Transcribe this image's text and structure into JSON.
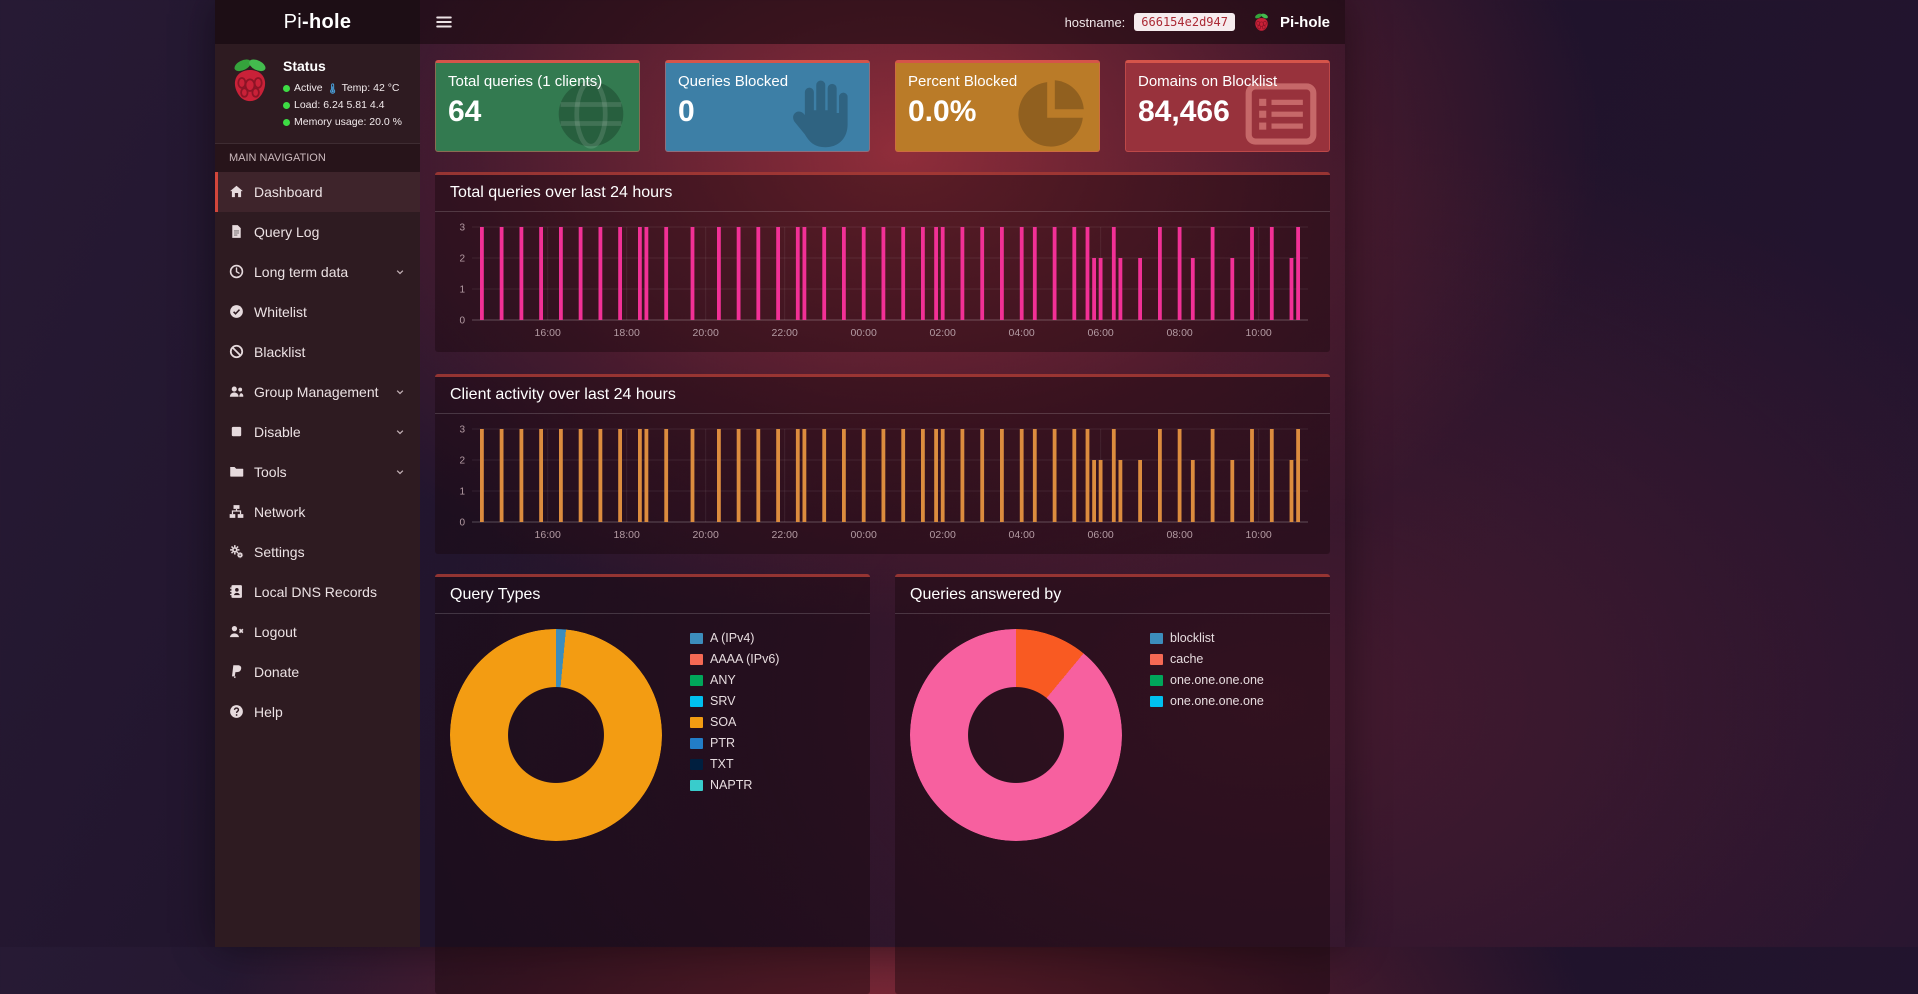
{
  "navbar": {
    "brand_prefix": "Pi",
    "brand_suffix": "-hole",
    "hostname_label": "hostname:",
    "hostname_value": "666154e2d947",
    "right_brand": "Pi-hole"
  },
  "sidebar": {
    "status": {
      "title": "Status",
      "lines": [
        {
          "dot_color": "#3ddc44",
          "text": "Active",
          "icon": "thermometer",
          "icon_color": "#4aa3df",
          "text_after_icon": "Temp: 42 °C"
        },
        {
          "dot_color": "#3ddc44",
          "text": "Load: 6.24 5.81 4.4"
        },
        {
          "dot_color": "#3ddc44",
          "text": "Memory usage: 20.0 %"
        }
      ]
    },
    "section_label": "MAIN NAVIGATION",
    "items": [
      {
        "label": "Dashboard",
        "icon": "home",
        "active": true
      },
      {
        "label": "Query Log",
        "icon": "file"
      },
      {
        "label": "Long term data",
        "icon": "clock",
        "expandable": true
      },
      {
        "label": "Whitelist",
        "icon": "check-circle"
      },
      {
        "label": "Blacklist",
        "icon": "ban"
      },
      {
        "label": "Group Management",
        "icon": "users",
        "expandable": true
      },
      {
        "label": "Disable",
        "icon": "stop",
        "expandable": true
      },
      {
        "label": "Tools",
        "icon": "folder",
        "expandable": true
      },
      {
        "label": "Network",
        "icon": "network"
      },
      {
        "label": "Settings",
        "icon": "cogs"
      },
      {
        "label": "Local DNS Records",
        "icon": "address-book"
      },
      {
        "label": "Logout",
        "icon": "user-times"
      },
      {
        "label": "Donate",
        "icon": "paypal"
      },
      {
        "label": "Help",
        "icon": "question"
      }
    ]
  },
  "cards": [
    {
      "title": "Total queries (1 clients)",
      "value": "64",
      "bg": "#337a50",
      "icon": "globe"
    },
    {
      "title": "Queries Blocked",
      "value": "0",
      "bg": "#3d7fa6",
      "icon": "hand"
    },
    {
      "title": "Percent Blocked",
      "value": "0.0%",
      "bg": "#ba7b28",
      "icon": "pie"
    },
    {
      "title": "Domains on Blocklist",
      "value": "84,466",
      "bg": "#98323c",
      "icon": "list",
      "icon_light": true
    }
  ],
  "chart_data": [
    {
      "type": "bar",
      "title": "Total queries over last 24 hours",
      "color": "#f23096",
      "ylim": [
        0,
        3
      ],
      "yticks": [
        0,
        1,
        2,
        3
      ],
      "interval_minutes": 10,
      "tick_labels": [
        "16:00",
        "18:00",
        "20:00",
        "22:00",
        "00:00",
        "02:00",
        "04:00",
        "06:00",
        "08:00",
        "10:00"
      ],
      "tick_slots": [
        11,
        23,
        35,
        47,
        59,
        71,
        83,
        95,
        107,
        119
      ],
      "values": [
        0,
        3,
        0,
        0,
        3,
        0,
        0,
        3,
        0,
        0,
        3,
        0,
        0,
        3,
        0,
        0,
        3,
        0,
        0,
        3,
        0,
        0,
        3,
        0,
        0,
        3,
        3,
        0,
        0,
        3,
        0,
        0,
        0,
        3,
        0,
        0,
        0,
        3,
        0,
        0,
        3,
        0,
        0,
        3,
        0,
        0,
        3,
        0,
        0,
        3,
        3,
        0,
        0,
        3,
        0,
        0,
        3,
        0,
        0,
        3,
        0,
        0,
        3,
        0,
        0,
        3,
        0,
        0,
        3,
        0,
        3,
        3,
        0,
        0,
        3,
        0,
        0,
        3,
        0,
        0,
        3,
        0,
        0,
        3,
        0,
        3,
        0,
        0,
        3,
        0,
        0,
        3,
        0,
        3,
        2,
        2,
        0,
        3,
        2,
        0,
        0,
        2,
        0,
        0,
        3,
        0,
        0,
        3,
        0,
        2,
        0,
        0,
        3,
        0,
        0,
        2,
        0,
        0,
        3,
        0,
        0,
        3,
        0,
        0,
        2,
        3,
        0
      ]
    },
    {
      "type": "bar",
      "title": "Client activity over last 24 hours",
      "color": "#dc8c3e",
      "ylim": [
        0,
        3
      ],
      "yticks": [
        0,
        1,
        2,
        3
      ],
      "interval_minutes": 10,
      "tick_labels": [
        "16:00",
        "18:00",
        "20:00",
        "22:00",
        "00:00",
        "02:00",
        "04:00",
        "06:00",
        "08:00",
        "10:00"
      ],
      "tick_slots": [
        11,
        23,
        35,
        47,
        59,
        71,
        83,
        95,
        107,
        119
      ],
      "values": [
        0,
        3,
        0,
        0,
        3,
        0,
        0,
        3,
        0,
        0,
        3,
        0,
        0,
        3,
        0,
        0,
        3,
        0,
        0,
        3,
        0,
        0,
        3,
        0,
        0,
        3,
        3,
        0,
        0,
        3,
        0,
        0,
        0,
        3,
        0,
        0,
        0,
        3,
        0,
        0,
        3,
        0,
        0,
        3,
        0,
        0,
        3,
        0,
        0,
        3,
        3,
        0,
        0,
        3,
        0,
        0,
        3,
        0,
        0,
        3,
        0,
        0,
        3,
        0,
        0,
        3,
        0,
        0,
        3,
        0,
        3,
        3,
        0,
        0,
        3,
        0,
        0,
        3,
        0,
        0,
        3,
        0,
        0,
        3,
        0,
        3,
        0,
        0,
        3,
        0,
        0,
        3,
        0,
        3,
        2,
        2,
        0,
        3,
        2,
        0,
        0,
        2,
        0,
        0,
        3,
        0,
        0,
        3,
        0,
        2,
        0,
        0,
        3,
        0,
        0,
        2,
        0,
        0,
        3,
        0,
        0,
        3,
        0,
        0,
        2,
        3,
        0
      ]
    },
    {
      "type": "doughnut",
      "title": "Query Types",
      "slices": [
        {
          "label": "A (IPv4)",
          "color": "#3c8dbc",
          "pct": 1.5
        },
        {
          "label": "SOA",
          "color": "#f39c12",
          "pct": 98.5
        }
      ],
      "legend": [
        {
          "label": "A (IPv4)",
          "color": "#3c8dbc"
        },
        {
          "label": "AAAA (IPv6)",
          "color": "#f56954"
        },
        {
          "label": "ANY",
          "color": "#00a65a"
        },
        {
          "label": "SRV",
          "color": "#00c0ef"
        },
        {
          "label": "SOA",
          "color": "#f39c12"
        },
        {
          "label": "PTR",
          "color": "#227dc7"
        },
        {
          "label": "TXT",
          "color": "#001f3f"
        },
        {
          "label": "NAPTR",
          "color": "#39cccc"
        }
      ]
    },
    {
      "type": "doughnut",
      "title": "Queries answered by",
      "slices": [
        {
          "label": "cache",
          "color": "#f95a22",
          "pct": 11
        },
        {
          "label": "one.one.one.one",
          "color": "#f7609f",
          "pct": 89
        }
      ],
      "legend": [
        {
          "label": "blocklist",
          "color": "#3c8dbc"
        },
        {
          "label": "cache",
          "color": "#f56954"
        },
        {
          "label": "one.one.one.one",
          "color": "#00a65a"
        },
        {
          "label": "one.one.one.one",
          "color": "#00c0ef"
        }
      ]
    }
  ]
}
